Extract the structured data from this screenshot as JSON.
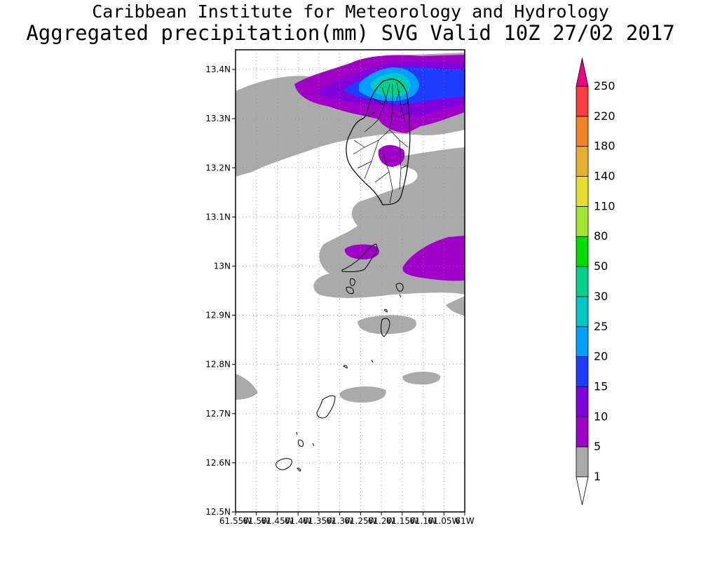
{
  "title": {
    "line1": "Caribbean Institute for Meteorology and Hydrology",
    "line2": "Aggregated precipitation(mm) SVG Valid 10Z 27/02 2017"
  },
  "map": {
    "lon_range": [
      -61.55,
      -61.0
    ],
    "lat_range": [
      12.5,
      13.44
    ],
    "lat_ticks": [
      {
        "value": 13.4,
        "label": "13.4N"
      },
      {
        "value": 13.3,
        "label": "13.3N"
      },
      {
        "value": 13.2,
        "label": "13.2N"
      },
      {
        "value": 13.1,
        "label": "13.1N"
      },
      {
        "value": 13.0,
        "label": "13N"
      },
      {
        "value": 12.9,
        "label": "12.9N"
      },
      {
        "value": 12.8,
        "label": "12.8N"
      },
      {
        "value": 12.7,
        "label": "12.7N"
      },
      {
        "value": 12.6,
        "label": "12.6N"
      },
      {
        "value": 12.5,
        "label": "12.5N"
      }
    ],
    "lon_ticks": [
      {
        "value": -61.55,
        "label": "61.55W"
      },
      {
        "value": -61.5,
        "label": "61.5W"
      },
      {
        "value": -61.45,
        "label": "61.45W"
      },
      {
        "value": -61.4,
        "label": "61.4W"
      },
      {
        "value": -61.35,
        "label": "61.35W"
      },
      {
        "value": -61.3,
        "label": "61.3W"
      },
      {
        "value": -61.25,
        "label": "61.25W"
      },
      {
        "value": -61.2,
        "label": "61.2W"
      },
      {
        "value": -61.15,
        "label": "61.15W"
      },
      {
        "value": -61.1,
        "label": "61.1W"
      },
      {
        "value": -61.05,
        "label": "61.05W"
      },
      {
        "value": -61.0,
        "label": "61W"
      }
    ],
    "grid": true
  },
  "colorbar": {
    "levels": [
      {
        "label": "1",
        "color": "#ffffff"
      },
      {
        "label": "5",
        "color": "#aaaaaa"
      },
      {
        "label": "10",
        "color": "#a000c8"
      },
      {
        "label": "15",
        "color": "#8200dc"
      },
      {
        "label": "20",
        "color": "#1e3cff"
      },
      {
        "label": "25",
        "color": "#00a0ff"
      },
      {
        "label": "30",
        "color": "#00c8c8"
      },
      {
        "label": "50",
        "color": "#00d28c"
      },
      {
        "label": "80",
        "color": "#00dc00"
      },
      {
        "label": "110",
        "color": "#a0e632"
      },
      {
        "label": "140",
        "color": "#e6dc32"
      },
      {
        "label": "180",
        "color": "#e6af2d"
      },
      {
        "label": "220",
        "color": "#f08228"
      },
      {
        "label": "250",
        "color": "#fa3c3c"
      }
    ],
    "top_color": "#f00082"
  },
  "colors": {
    "gray": "#aaaaaa",
    "purple": "#a000c8",
    "violet": "#8200dc",
    "blue": "#1e3cff",
    "cyan": "#00a0ff",
    "teal": "#00c8c8",
    "green": "#00d28c"
  }
}
